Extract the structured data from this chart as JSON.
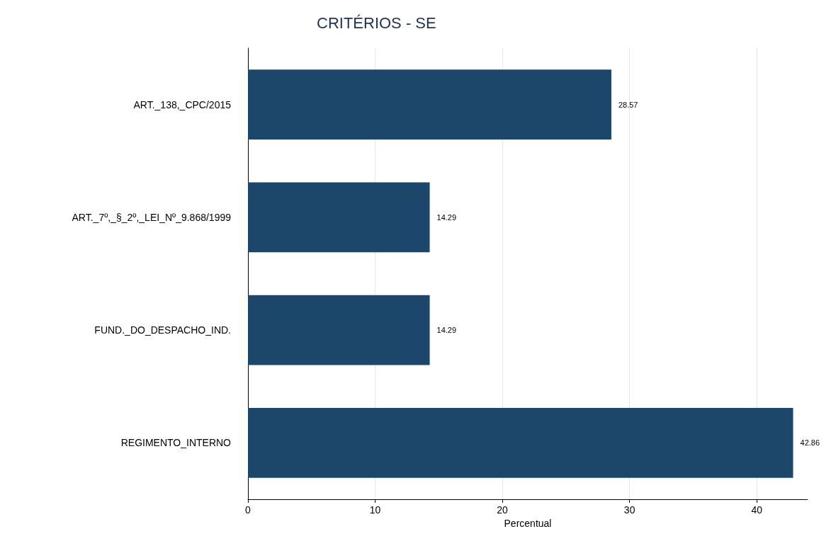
{
  "chart_data": {
    "type": "bar",
    "orientation": "horizontal",
    "title": "CRITÉRIOS - SE",
    "xlabel": "Percentual",
    "categories": [
      "ART._138,_CPC/2015",
      "ART._7º,_§_2º,_LEI_Nº_9.868/1999",
      "FUND._DO_DESPACHO_IND.",
      "REGIMENTO_INTERNO"
    ],
    "values": [
      28.57,
      14.29,
      14.29,
      42.86
    ],
    "color": "#1c476b",
    "xlim": [
      0,
      44
    ],
    "xticks": [
      0,
      10,
      20,
      30,
      40
    ],
    "grid": "x",
    "data_labels": true
  }
}
